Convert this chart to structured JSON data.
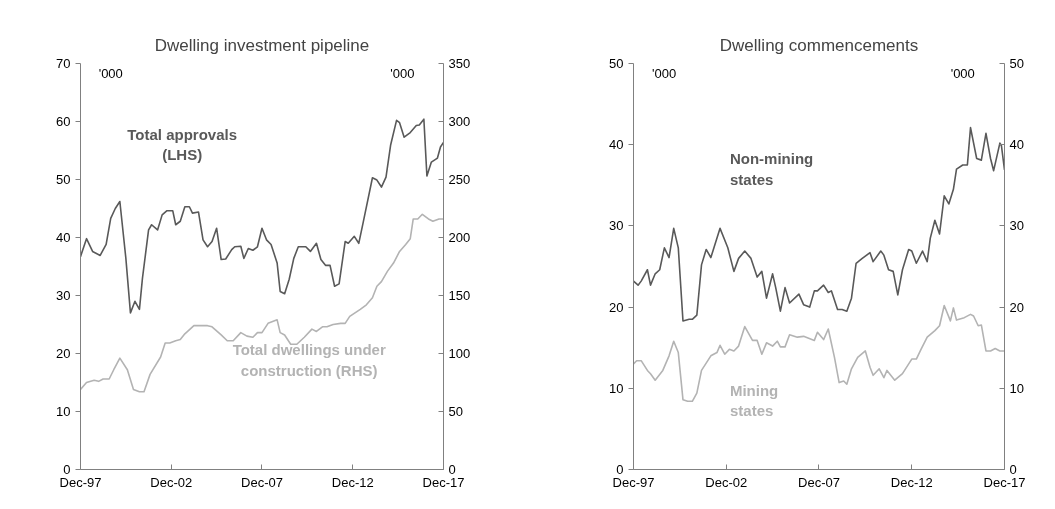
{
  "chart_data": [
    {
      "type": "line",
      "title": "Dwelling investment pipeline",
      "annotations": [
        "'000",
        "'000"
      ],
      "xlim": [
        "1997-12",
        "2017-12"
      ],
      "xticks": [
        {
          "value": "1997-12",
          "label": "Dec-97"
        },
        {
          "value": "2002-12",
          "label": "Dec-02"
        },
        {
          "value": "2007-12",
          "label": "Dec-07"
        },
        {
          "value": "2012-12",
          "label": "Dec-12"
        },
        {
          "value": "2017-12",
          "label": "Dec-17"
        }
      ],
      "ylim": [
        0,
        70
      ],
      "yticks": [
        0,
        10,
        20,
        30,
        40,
        50,
        60,
        70
      ],
      "y2lim": [
        0,
        350
      ],
      "y2ticks": [
        0,
        50,
        100,
        150,
        200,
        250,
        300,
        350
      ],
      "series": [
        {
          "name": "Total approvals\n(LHS)",
          "color": "#595959",
          "x": [
            "1997-12",
            "1998-04",
            "1998-08",
            "1999-01",
            "1999-05",
            "1999-08",
            "1999-11",
            "2000-02",
            "2000-06",
            "2000-09",
            "2000-12",
            "2001-03",
            "2001-05",
            "2001-09",
            "2001-11",
            "2002-03",
            "2002-06",
            "2002-09",
            "2003-01",
            "2003-03",
            "2003-06",
            "2003-09",
            "2003-12",
            "2004-02",
            "2004-06",
            "2004-09",
            "2004-12",
            "2005-03",
            "2005-06",
            "2005-09",
            "2005-12",
            "2006-04",
            "2006-06",
            "2006-10",
            "2006-12",
            "2007-03",
            "2007-06",
            "2007-09",
            "2007-12",
            "2008-03",
            "2008-06",
            "2008-10",
            "2008-12",
            "2009-03",
            "2009-06",
            "2009-09",
            "2009-12",
            "2010-05",
            "2010-08",
            "2010-12",
            "2011-03",
            "2011-06",
            "2011-09",
            "2011-12",
            "2012-03",
            "2012-07",
            "2012-09",
            "2013-01",
            "2013-04",
            "2013-07",
            "2014-01",
            "2014-04",
            "2014-07",
            "2014-10",
            "2015-01",
            "2015-05",
            "2015-07",
            "2015-10",
            "2016-02",
            "2016-06",
            "2016-08",
            "2016-11",
            "2017-01",
            "2017-04",
            "2017-08",
            "2017-10",
            "2017-12"
          ],
          "values": [
            36.7,
            39.8,
            37.6,
            36.9,
            38.8,
            43.3,
            45.0,
            46.2,
            36.4,
            27.0,
            29.0,
            27.6,
            33.0,
            41.3,
            42.2,
            41.3,
            43.9,
            44.6,
            44.6,
            42.2,
            42.8,
            45.3,
            45.3,
            44.2,
            44.4,
            39.6,
            38.4,
            39.3,
            41.6,
            36.2,
            36.3,
            37.9,
            38.4,
            38.5,
            36.4,
            38.1,
            37.8,
            38.4,
            41.6,
            39.6,
            38.8,
            35.6,
            30.7,
            30.3,
            32.8,
            36.4,
            38.4,
            38.4,
            37.6,
            39.0,
            36.2,
            35.2,
            35.2,
            31.6,
            32.0,
            39.3,
            39.0,
            40.2,
            39.0,
            42.7,
            50.3,
            49.9,
            48.7,
            50.4,
            55.9,
            60.2,
            59.8,
            57.3,
            58.1,
            59.3,
            59.4,
            60.4,
            50.6,
            53.0,
            53.7,
            55.6,
            56.4
          ]
        },
        {
          "name": "Total dwellings under\nconstruction (RHS)",
          "color": "#b3b3b3",
          "axis": "y2",
          "x": [
            "1997-12",
            "1998-04",
            "1998-09",
            "1998-12",
            "1999-03",
            "1999-07",
            "1999-10",
            "2000-02",
            "2000-07",
            "2000-11",
            "2001-03",
            "2001-06",
            "2001-10",
            "2002-05",
            "2002-08",
            "2002-11",
            "2003-03",
            "2003-06",
            "2003-09",
            "2004-03",
            "2004-12",
            "2005-03",
            "2005-09",
            "2006-01",
            "2006-05",
            "2006-10",
            "2007-02",
            "2007-06",
            "2007-09",
            "2007-12",
            "2008-04",
            "2008-10",
            "2008-12",
            "2009-03",
            "2009-07",
            "2009-11",
            "2010-04",
            "2010-09",
            "2010-12",
            "2011-04",
            "2011-07",
            "2011-11",
            "2012-04",
            "2012-07",
            "2012-10",
            "2013-05",
            "2013-09",
            "2014-01",
            "2014-04",
            "2014-07",
            "2014-11",
            "2015-03",
            "2015-07",
            "2015-11",
            "2016-02",
            "2016-04",
            "2016-07",
            "2016-10",
            "2017-02",
            "2017-05",
            "2017-09",
            "2017-12"
          ],
          "values": [
            69,
            75,
            77,
            76,
            78,
            78,
            86,
            96,
            86,
            69,
            67,
            67,
            82,
            97,
            109,
            109,
            111,
            112,
            117,
            124,
            124,
            123,
            116,
            111,
            111,
            118,
            115,
            114,
            118,
            118,
            126,
            129,
            118,
            116,
            108,
            108,
            114,
            121,
            119,
            123,
            123,
            125,
            126,
            126,
            132,
            138,
            142,
            148,
            158,
            162,
            171,
            178,
            188,
            194,
            199,
            216,
            216,
            220,
            216,
            214,
            216,
            216
          ]
        }
      ]
    },
    {
      "type": "line",
      "title": "Dwelling commencements",
      "annotations": [
        "'000",
        "'000"
      ],
      "xlim": [
        "1997-12",
        "2017-12"
      ],
      "xticks": [
        {
          "value": "1997-12",
          "label": "Dec-97"
        },
        {
          "value": "2002-12",
          "label": "Dec-02"
        },
        {
          "value": "2007-12",
          "label": "Dec-07"
        },
        {
          "value": "2012-12",
          "label": "Dec-12"
        },
        {
          "value": "2017-12",
          "label": "Dec-17"
        }
      ],
      "ylim": [
        0,
        50
      ],
      "yticks": [
        0,
        10,
        20,
        30,
        40,
        50
      ],
      "y2lim": [
        0,
        50
      ],
      "y2ticks": [
        0,
        10,
        20,
        30,
        40,
        50
      ],
      "series": [
        {
          "name": "Non-mining\nstates",
          "color": "#595959",
          "x": [
            "1997-12",
            "1998-03",
            "1998-05",
            "1998-09",
            "1998-11",
            "1999-02",
            "1999-05",
            "1999-08",
            "1999-11",
            "2000-02",
            "2000-05",
            "2000-08",
            "2000-12",
            "2001-02",
            "2001-05",
            "2001-08",
            "2001-11",
            "2002-02",
            "2002-08",
            "2003-01",
            "2003-05",
            "2003-08",
            "2003-12",
            "2004-04",
            "2004-08",
            "2004-11",
            "2005-02",
            "2005-06",
            "2005-08",
            "2005-11",
            "2006-02",
            "2006-05",
            "2006-11",
            "2007-02",
            "2007-06",
            "2007-09",
            "2007-11",
            "2008-03",
            "2008-06",
            "2008-08",
            "2008-12",
            "2009-03",
            "2009-06",
            "2009-09",
            "2009-12",
            "2010-04",
            "2010-09",
            "2010-11",
            "2011-04",
            "2011-06",
            "2011-09",
            "2011-12",
            "2012-03",
            "2012-06",
            "2012-10",
            "2012-12",
            "2013-03",
            "2013-07",
            "2013-10",
            "2013-12",
            "2014-03",
            "2014-06",
            "2014-09",
            "2014-12",
            "2015-03",
            "2015-05",
            "2015-09",
            "2015-12",
            "2016-02",
            "2016-06",
            "2016-09",
            "2016-12",
            "2017-03",
            "2017-05",
            "2017-09",
            "2017-10",
            "2017-12"
          ],
          "values": [
            23.2,
            22.7,
            23.2,
            24.6,
            22.7,
            24.1,
            24.6,
            27.3,
            26.1,
            29.7,
            27.3,
            18.3,
            18.5,
            18.5,
            19.0,
            25.2,
            27.1,
            26.1,
            29.7,
            27.3,
            24.4,
            26.0,
            26.9,
            26.0,
            23.7,
            24.4,
            21.1,
            24.1,
            22.4,
            19.5,
            22.4,
            20.5,
            21.6,
            20.3,
            20.0,
            22.0,
            22.0,
            22.7,
            21.8,
            22.0,
            19.7,
            19.7,
            19.5,
            21.1,
            25.4,
            26.0,
            26.7,
            25.6,
            26.9,
            26.4,
            24.6,
            24.4,
            21.5,
            24.6,
            27.1,
            26.9,
            25.4,
            26.9,
            25.6,
            28.5,
            30.7,
            29.0,
            33.7,
            32.7,
            34.5,
            37.0,
            37.5,
            37.5,
            42.1,
            38.3,
            38.1,
            41.4,
            38.3,
            36.8,
            40.2,
            39.9,
            36.9
          ]
        },
        {
          "name": "Mining\nstates",
          "color": "#b3b3b3",
          "x": [
            "1997-12",
            "1998-02",
            "1998-05",
            "1998-09",
            "1998-11",
            "1999-02",
            "1999-07",
            "1999-11",
            "2000-02",
            "2000-05",
            "2000-08",
            "2000-11",
            "2001-02",
            "2001-05",
            "2001-08",
            "2002-02",
            "2002-06",
            "2002-08",
            "2002-11",
            "2003-02",
            "2003-05",
            "2003-08",
            "2003-12",
            "2004-05",
            "2004-08",
            "2004-11",
            "2005-02",
            "2005-06",
            "2005-09",
            "2005-11",
            "2006-02",
            "2006-05",
            "2006-10",
            "2007-02",
            "2007-09",
            "2007-11",
            "2008-03",
            "2008-06",
            "2008-10",
            "2009-01",
            "2009-04",
            "2009-06",
            "2009-09",
            "2010-01",
            "2010-06",
            "2010-09",
            "2010-11",
            "2011-03",
            "2011-06",
            "2011-08",
            "2012-01",
            "2012-06",
            "2012-12",
            "2013-03",
            "2013-06",
            "2013-10",
            "2014-03",
            "2014-06",
            "2014-09",
            "2015-01",
            "2015-03",
            "2015-05",
            "2015-10",
            "2016-02",
            "2016-04",
            "2016-07",
            "2016-09",
            "2016-12",
            "2017-03",
            "2017-06",
            "2017-09",
            "2017-12"
          ],
          "values": [
            13.0,
            13.4,
            13.4,
            12.2,
            11.8,
            11.0,
            12.2,
            14.0,
            15.8,
            14.4,
            8.6,
            8.4,
            8.4,
            9.4,
            12.2,
            14.0,
            14.4,
            15.3,
            14.2,
            14.8,
            14.6,
            15.2,
            17.6,
            15.9,
            15.9,
            14.2,
            15.6,
            15.2,
            15.8,
            15.1,
            15.1,
            16.6,
            16.3,
            16.4,
            15.9,
            16.9,
            16.0,
            17.3,
            13.8,
            10.7,
            10.9,
            10.5,
            12.4,
            13.8,
            14.6,
            12.6,
            11.6,
            12.4,
            11.3,
            12.2,
            11.0,
            11.8,
            13.6,
            13.6,
            14.8,
            16.3,
            17.1,
            17.7,
            20.2,
            18.3,
            19.9,
            18.4,
            18.7,
            19.1,
            18.9,
            17.7,
            17.8,
            14.6,
            14.6,
            14.9,
            14.6,
            14.6
          ]
        }
      ]
    }
  ]
}
